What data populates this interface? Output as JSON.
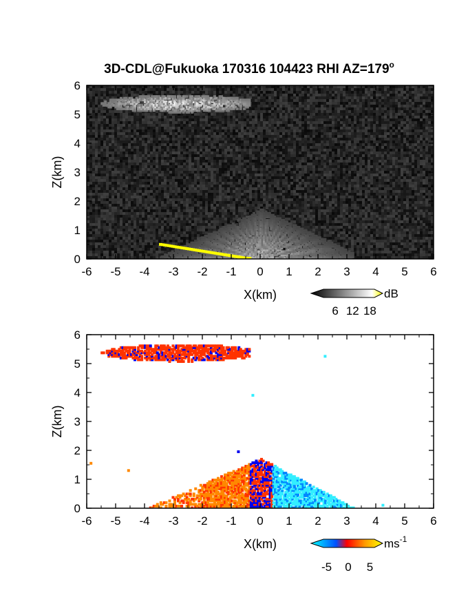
{
  "title": "3D-CDL@Fukuoka 170316 104423 RHI AZ=179",
  "title_degree": "o",
  "chart_data": [
    {
      "type": "heatmap",
      "panel": "reflectivity",
      "xlabel": "X(km)",
      "ylabel": "Z(km)",
      "xlim": [
        -6,
        6
      ],
      "ylim": [
        0,
        6
      ],
      "xticks": [
        "-6",
        "-5",
        "-4",
        "-3",
        "-2",
        "-1",
        "0",
        "1",
        "2",
        "3",
        "4",
        "5",
        "6"
      ],
      "yticks": [
        "0",
        "1",
        "2",
        "3",
        "4",
        "5",
        "6"
      ],
      "colorbar": {
        "unit": "dB",
        "ticks": [
          "6",
          "12",
          "18"
        ],
        "range": [
          0,
          21
        ],
        "colors": [
          "#000000",
          "#ffffff",
          "#ffff00"
        ]
      },
      "background_color": "#1a1a1a",
      "features": [
        {
          "kind": "upper-cloud-layer",
          "x": [
            -6,
            -0.4
          ],
          "z": [
            5.0,
            5.7
          ]
        },
        {
          "kind": "near-radar-fan",
          "x": [
            -3.8,
            3.2
          ],
          "z": [
            0,
            1.8
          ]
        },
        {
          "kind": "yellow-ground-clutter",
          "x": [
            -3.5,
            -0.8
          ],
          "z": [
            0.0,
            0.5
          ]
        }
      ]
    },
    {
      "type": "heatmap",
      "panel": "doppler-velocity",
      "xlabel": "X(km)",
      "ylabel": "Z(km)",
      "xlim": [
        -6,
        6
      ],
      "ylim": [
        0,
        6
      ],
      "xticks": [
        "-6",
        "-5",
        "-4",
        "-3",
        "-2",
        "-1",
        "0",
        "1",
        "2",
        "3",
        "4",
        "5",
        "6"
      ],
      "yticks": [
        "0",
        "1",
        "2",
        "3",
        "4",
        "5",
        "6"
      ],
      "colorbar": {
        "unit": "ms",
        "unit_exp": "-1",
        "ticks": [
          "-5",
          "0",
          "5"
        ],
        "range": [
          -7,
          7
        ],
        "colors": [
          "#00ffff",
          "#0000ff",
          "#ff0000",
          "#ffff00"
        ]
      },
      "background_color": "#ffffff",
      "features": [
        {
          "kind": "upper-cloud-layer",
          "x": [
            -6,
            -0.4
          ],
          "z": [
            5.0,
            5.7
          ],
          "velocity": 2
        },
        {
          "kind": "approaching-flow",
          "x": [
            -3.8,
            0
          ],
          "z": [
            0,
            1.6
          ],
          "velocity": 4
        },
        {
          "kind": "receding-flow",
          "x": [
            0,
            3.4
          ],
          "z": [
            0,
            1.6
          ],
          "velocity": -4
        }
      ]
    }
  ]
}
